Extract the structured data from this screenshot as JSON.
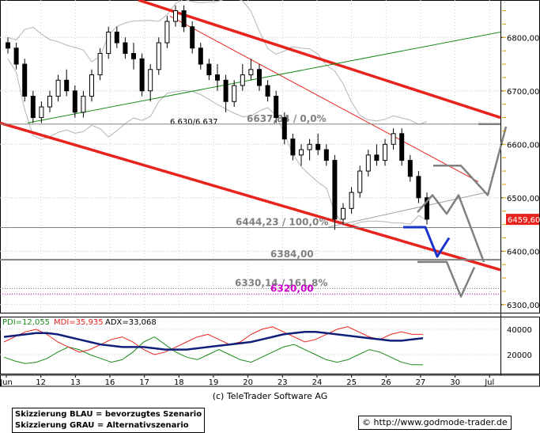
{
  "chart_data": [
    {
      "type": "candlestick",
      "title": "",
      "xlabel": "",
      "ylabel": "",
      "ylim": [
        6285,
        6870
      ],
      "x_ticks": [
        "Jun",
        "12",
        "13",
        "16",
        "17",
        "18",
        "19",
        "20",
        "23",
        "24",
        "25",
        "26",
        "27",
        "30",
        "Jul"
      ],
      "y_ticks": [
        "6800,00",
        "6700,00",
        "6600,00",
        "6500,00",
        "6400,00",
        "6300,00"
      ],
      "last_price": "6459,60",
      "candles": [
        [
          6790,
          6800,
          6770,
          6780
        ],
        [
          6780,
          6790,
          6740,
          6750
        ],
        [
          6750,
          6760,
          6680,
          6690
        ],
        [
          6690,
          6700,
          6640,
          6650
        ],
        [
          6650,
          6680,
          6640,
          6670
        ],
        [
          6670,
          6700,
          6660,
          6690
        ],
        [
          6690,
          6730,
          6680,
          6720
        ],
        [
          6720,
          6740,
          6690,
          6700
        ],
        [
          6700,
          6710,
          6650,
          6660
        ],
        [
          6660,
          6700,
          6650,
          6690
        ],
        [
          6690,
          6740,
          6680,
          6730
        ],
        [
          6730,
          6780,
          6720,
          6770
        ],
        [
          6770,
          6820,
          6760,
          6810
        ],
        [
          6810,
          6820,
          6780,
          6790
        ],
        [
          6790,
          6800,
          6760,
          6770
        ],
        [
          6770,
          6790,
          6740,
          6760
        ],
        [
          6760,
          6770,
          6690,
          6700
        ],
        [
          6700,
          6750,
          6680,
          6740
        ],
        [
          6740,
          6800,
          6730,
          6790
        ],
        [
          6790,
          6840,
          6780,
          6830
        ],
        [
          6830,
          6860,
          6820,
          6850
        ],
        [
          6850,
          6860,
          6810,
          6820
        ],
        [
          6820,
          6830,
          6770,
          6780
        ],
        [
          6780,
          6790,
          6740,
          6750
        ],
        [
          6750,
          6760,
          6720,
          6730
        ],
        [
          6730,
          6750,
          6700,
          6720
        ],
        [
          6720,
          6730,
          6660,
          6680
        ],
        [
          6680,
          6720,
          6670,
          6710
        ],
        [
          6710,
          6750,
          6700,
          6730
        ],
        [
          6730,
          6760,
          6720,
          6740
        ],
        [
          6740,
          6750,
          6700,
          6710
        ],
        [
          6710,
          6720,
          6680,
          6690
        ],
        [
          6690,
          6700,
          6640,
          6650
        ],
        [
          6650,
          6660,
          6600,
          6610
        ],
        [
          6610,
          6620,
          6570,
          6580
        ],
        [
          6580,
          6600,
          6560,
          6590
        ],
        [
          6590,
          6610,
          6570,
          6600
        ],
        [
          6600,
          6620,
          6580,
          6590
        ],
        [
          6590,
          6600,
          6560,
          6570
        ],
        [
          6570,
          6580,
          6440,
          6460
        ],
        [
          6460,
          6490,
          6450,
          6480
        ],
        [
          6480,
          6520,
          6470,
          6510
        ],
        [
          6510,
          6560,
          6500,
          6550
        ],
        [
          6550,
          6590,
          6540,
          6580
        ],
        [
          6580,
          6600,
          6560,
          6570
        ],
        [
          6570,
          6610,
          6560,
          6600
        ],
        [
          6600,
          6630,
          6590,
          6620
        ],
        [
          6620,
          6630,
          6560,
          6570
        ],
        [
          6570,
          6580,
          6530,
          6540
        ],
        [
          6540,
          6550,
          6490,
          6500
        ],
        [
          6500,
          6510,
          6450,
          6460
        ]
      ],
      "level_lines": [
        {
          "label": "6.630/6.637",
          "value": 6633,
          "style": "solid",
          "color": "#808080"
        },
        {
          "label": "6637,84 / 0,0%",
          "value": 6637.84,
          "style": "solid",
          "color": "#808080"
        },
        {
          "label": "6444,23 / 100,0%",
          "value": 6444.23,
          "style": "solid",
          "color": "#808080"
        },
        {
          "label": "6384,00",
          "value": 6384,
          "style": "solid-thick",
          "color": "#808080"
        },
        {
          "label": "6330,14 / 161,8%",
          "value": 6330.14,
          "style": "dotted",
          "color": "#808080"
        },
        {
          "label": "6320,00",
          "value": 6320,
          "style": "dotted",
          "color": "#cc00cc"
        }
      ],
      "channels": [
        {
          "name": "upper trend",
          "color": "#e8231e"
        },
        {
          "name": "lower trend",
          "color": "#e8231e"
        },
        {
          "name": "inner trend",
          "color": "#e8231e"
        },
        {
          "name": "uptrend",
          "color": "#1a8a1a"
        }
      ],
      "scenarios": [
        {
          "name": "blau",
          "color": "#1a33cc"
        },
        {
          "name": "grau",
          "color": "#808080"
        }
      ]
    },
    {
      "type": "line",
      "title": "",
      "xlabel": "",
      "ylabel": "",
      "ylim": [
        5000,
        50000
      ],
      "y_ticks": [
        "40000",
        "20000"
      ],
      "series": [
        {
          "name": "PDI=12,055",
          "color": "#1a8a1a",
          "values": [
            18000,
            15000,
            13000,
            14000,
            17000,
            22000,
            26000,
            24000,
            20000,
            17000,
            14000,
            16000,
            22000,
            30000,
            34000,
            28000,
            22000,
            18000,
            16000,
            20000,
            24000,
            20000,
            16000,
            14000,
            18000,
            22000,
            26000,
            28000,
            24000,
            20000,
            16000,
            14000,
            16000,
            20000,
            24000,
            22000,
            18000,
            14000,
            12000,
            12000
          ]
        },
        {
          "name": "MDI=35,935",
          "color": "#e8231e",
          "values": [
            30000,
            34000,
            38000,
            40000,
            36000,
            30000,
            26000,
            22000,
            24000,
            28000,
            32000,
            34000,
            30000,
            24000,
            20000,
            22000,
            26000,
            30000,
            34000,
            36000,
            32000,
            28000,
            30000,
            36000,
            40000,
            42000,
            38000,
            34000,
            30000,
            32000,
            36000,
            40000,
            42000,
            38000,
            34000,
            32000,
            36000,
            38000,
            36000,
            36000
          ]
        },
        {
          "name": "ADX=33,068",
          "color": "#10207a",
          "values": [
            34000,
            35000,
            36000,
            37000,
            37000,
            36000,
            34000,
            32000,
            30000,
            28000,
            27000,
            26000,
            26000,
            26000,
            25000,
            24000,
            24000,
            24000,
            25000,
            26000,
            27000,
            28000,
            29000,
            30000,
            32000,
            34000,
            36000,
            37000,
            38000,
            38000,
            37000,
            36000,
            35000,
            34000,
            33000,
            32000,
            31000,
            31000,
            32000,
            33000
          ]
        }
      ]
    }
  ],
  "copyright": "(c) TeleTrader Software AG",
  "legend_blue": "Skizzierung BLAU = bevorzugtes Szenario",
  "legend_grey": "Skizzierung GRAU = Alternativszenario",
  "website": "© http://www.godmode-trader.de"
}
